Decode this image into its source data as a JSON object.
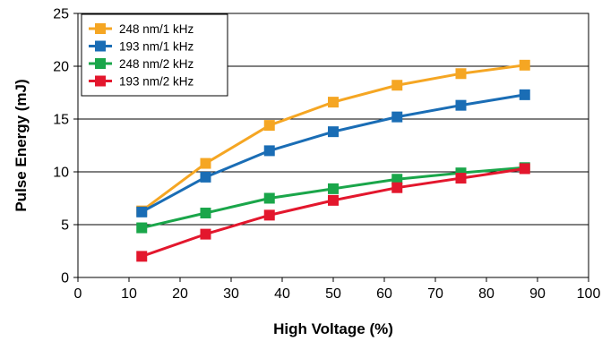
{
  "chart_data": {
    "type": "line",
    "title": "",
    "xlabel": "High Voltage (%)",
    "ylabel": "Pulse Energy (mJ)",
    "xlim": [
      0,
      100
    ],
    "ylim": [
      0,
      25
    ],
    "xticks": [
      0,
      10,
      20,
      30,
      40,
      50,
      60,
      70,
      80,
      90,
      100
    ],
    "yticks": [
      0,
      5,
      10,
      15,
      20,
      25
    ],
    "grid": "horizontal",
    "legend_position": "top-left",
    "x": [
      12.5,
      25,
      37.5,
      50,
      62.5,
      75,
      87.5
    ],
    "series": [
      {
        "name": "248 nm/1 kHz",
        "color": "#F5A623",
        "values": [
          6.3,
          10.8,
          14.4,
          16.6,
          18.2,
          19.3,
          20.1
        ]
      },
      {
        "name": "193 nm/1 kHz",
        "color": "#1A6DB5",
        "values": [
          6.2,
          9.5,
          12.0,
          13.8,
          15.2,
          16.3,
          17.3
        ]
      },
      {
        "name": "248 nm/2 kHz",
        "color": "#1AA64A",
        "values": [
          4.7,
          6.1,
          7.5,
          8.4,
          9.3,
          9.9,
          10.4
        ]
      },
      {
        "name": "193 nm/2 kHz",
        "color": "#E3172D",
        "values": [
          2.0,
          4.1,
          5.9,
          7.3,
          8.5,
          9.4,
          10.3
        ]
      }
    ]
  }
}
